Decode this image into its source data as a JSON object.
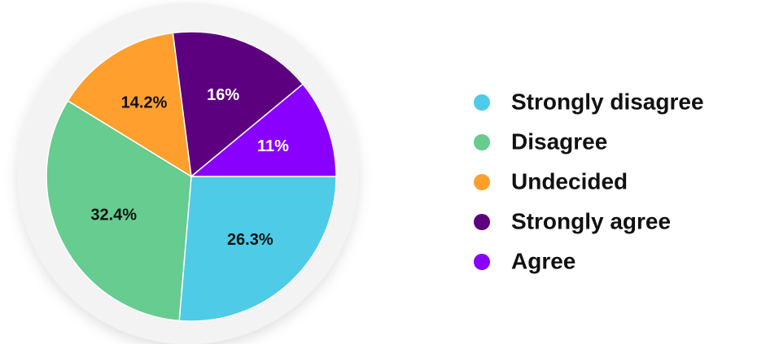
{
  "chart_data": {
    "type": "pie",
    "categories": [
      "Strongly disagree",
      "Disagree",
      "Undecided",
      "Strongly agree",
      "Agree"
    ],
    "values": [
      26.3,
      32.4,
      14.2,
      16,
      11
    ],
    "value_labels": [
      "26.3%",
      "32.4%",
      "14.2%",
      "16%",
      "11%"
    ],
    "colors": [
      "#4ecbe6",
      "#66cc8f",
      "#ff9f2e",
      "#5c0080",
      "#8a00ff"
    ],
    "legend": "right"
  }
}
